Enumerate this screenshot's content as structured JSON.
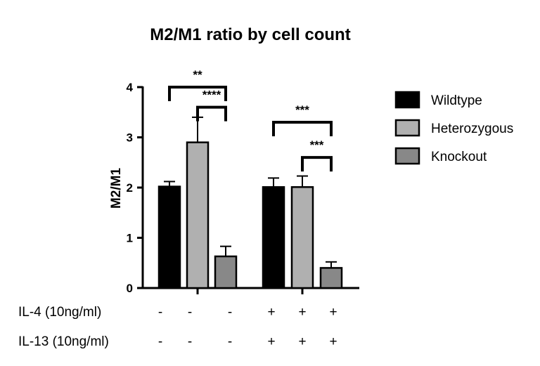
{
  "chart_data": {
    "type": "bar",
    "title": "M2/M1 ratio by cell count",
    "ylabel": "M2/M1",
    "xlabel": "",
    "ylim": [
      0,
      4
    ],
    "yticks": [
      0,
      1,
      2,
      3,
      4
    ],
    "grid": false,
    "legend_position": "right",
    "groups": [
      {
        "bars": [
          {
            "series": "Wildtype",
            "value": 2.02,
            "error": 0.1
          },
          {
            "series": "Heterozygous",
            "value": 2.9,
            "error": 0.5
          },
          {
            "series": "Knockout",
            "value": 0.63,
            "error": 0.2
          }
        ]
      },
      {
        "bars": [
          {
            "series": "Wildtype",
            "value": 2.01,
            "error": 0.18
          },
          {
            "series": "Heterozygous",
            "value": 2.01,
            "error": 0.22
          },
          {
            "series": "Knockout",
            "value": 0.4,
            "error": 0.12
          }
        ]
      }
    ],
    "series": [
      {
        "name": "Wildtype",
        "color": "#000000"
      },
      {
        "name": "Heterozygous",
        "color": "#b0b0b0"
      },
      {
        "name": "Knockout",
        "color": "#888888"
      }
    ],
    "significance": [
      {
        "group": 0,
        "from": 0,
        "to": 2,
        "level": 4.0,
        "label": "**"
      },
      {
        "group": 0,
        "from": 1,
        "to": 2,
        "level": 3.6,
        "label": "****"
      },
      {
        "group": 1,
        "from": 0,
        "to": 2,
        "level": 3.3,
        "label": "***"
      },
      {
        "group": 1,
        "from": 1,
        "to": 2,
        "level": 2.6,
        "label": "***"
      }
    ],
    "conditions": [
      {
        "label": "IL-4 (10ng/ml)",
        "values": [
          "-",
          "-",
          "-",
          "+",
          "+",
          "+"
        ]
      },
      {
        "label": "IL-13 (10ng/ml)",
        "values": [
          "-",
          "-",
          "-",
          "+",
          "+",
          "+"
        ]
      }
    ]
  }
}
